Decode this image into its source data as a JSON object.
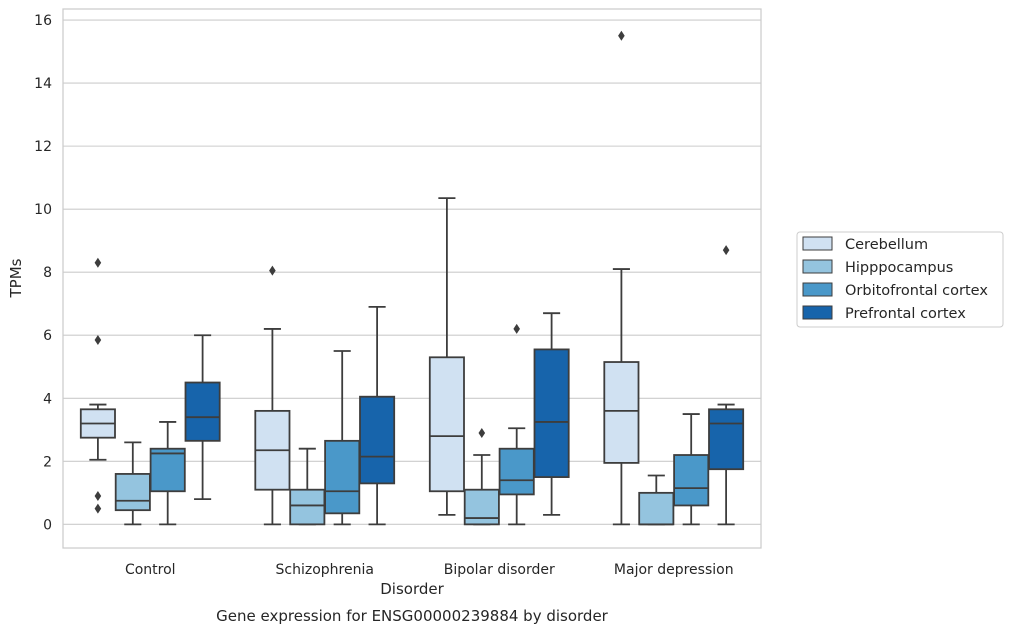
{
  "chart_data": {
    "type": "box",
    "title": "",
    "caption": "Gene expression for ENSG00000239884 by disorder",
    "xlabel": "Disorder",
    "ylabel": "TPMs",
    "ylim": [
      -0.75,
      16.35
    ],
    "yticks": [
      0,
      2,
      4,
      6,
      8,
      10,
      12,
      14,
      16
    ],
    "grid": "horizontal",
    "legend_position": "right",
    "categories": [
      "Control",
      "Schizophrenia",
      "Bipolar disorder",
      "Major depression"
    ],
    "series": [
      {
        "name": "Cerebellum",
        "color": "#d0e1f2",
        "boxes": [
          {
            "whislo": 2.05,
            "q1": 2.75,
            "med": 3.2,
            "q3": 3.65,
            "whishi": 3.8,
            "fliers": [
              8.3,
              5.85,
              0.9,
              0.5
            ]
          },
          {
            "whislo": 0.0,
            "q1": 1.1,
            "med": 2.35,
            "q3": 3.6,
            "whishi": 6.2,
            "fliers": [
              8.05
            ]
          },
          {
            "whislo": 0.3,
            "q1": 1.05,
            "med": 2.8,
            "q3": 5.3,
            "whishi": 10.35,
            "fliers": []
          },
          {
            "whislo": 0.0,
            "q1": 1.95,
            "med": 3.6,
            "q3": 5.15,
            "whishi": 8.1,
            "fliers": [
              15.5
            ]
          }
        ]
      },
      {
        "name": "Hipppocampus",
        "color": "#94c4df",
        "boxes": [
          {
            "whislo": 0.0,
            "q1": 0.45,
            "med": 0.75,
            "q3": 1.6,
            "whishi": 2.6,
            "fliers": []
          },
          {
            "whislo": 0.0,
            "q1": 0.0,
            "med": 0.6,
            "q3": 1.1,
            "whishi": 2.4,
            "fliers": []
          },
          {
            "whislo": 0.0,
            "q1": 0.0,
            "med": 0.2,
            "q3": 1.1,
            "whishi": 2.2,
            "fliers": [
              2.9
            ]
          },
          {
            "whislo": 0.0,
            "q1": 0.0,
            "med": 0.0,
            "q3": 1.0,
            "whishi": 1.55,
            "fliers": []
          }
        ]
      },
      {
        "name": "Orbitofrontal cortex",
        "color": "#4a98c9",
        "boxes": [
          {
            "whislo": 0.0,
            "q1": 1.05,
            "med": 2.25,
            "q3": 2.4,
            "whishi": 3.25,
            "fliers": []
          },
          {
            "whislo": 0.0,
            "q1": 0.35,
            "med": 1.05,
            "q3": 2.65,
            "whishi": 5.5,
            "fliers": []
          },
          {
            "whislo": 0.0,
            "q1": 0.95,
            "med": 1.4,
            "q3": 2.4,
            "whishi": 3.05,
            "fliers": [
              6.2
            ]
          },
          {
            "whislo": 0.0,
            "q1": 0.6,
            "med": 1.15,
            "q3": 2.2,
            "whishi": 3.5,
            "fliers": []
          }
        ]
      },
      {
        "name": "Prefrontal cortex",
        "color": "#1764ab",
        "boxes": [
          {
            "whislo": 0.8,
            "q1": 2.65,
            "med": 3.4,
            "q3": 4.5,
            "whishi": 6.0,
            "fliers": []
          },
          {
            "whislo": 0.0,
            "q1": 1.3,
            "med": 2.15,
            "q3": 4.05,
            "whishi": 6.9,
            "fliers": []
          },
          {
            "whislo": 0.3,
            "q1": 1.5,
            "med": 3.25,
            "q3": 5.55,
            "whishi": 6.7,
            "fliers": []
          },
          {
            "whislo": 0.0,
            "q1": 1.75,
            "med": 3.2,
            "q3": 3.65,
            "whishi": 3.8,
            "fliers": [
              8.7
            ]
          }
        ]
      }
    ]
  }
}
